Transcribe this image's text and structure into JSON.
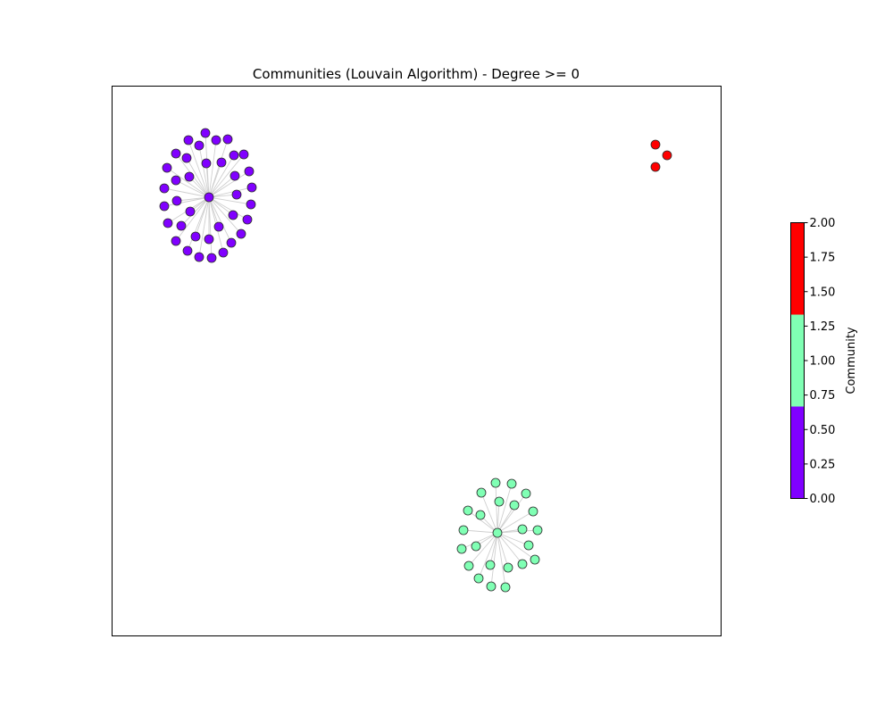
{
  "title": "Communities (Louvain Algorithm) - Degree >= 0",
  "colorbar": {
    "label": "Community",
    "min": 0,
    "max": 2,
    "ticks": [
      "0.00",
      "0.25",
      "0.50",
      "0.75",
      "1.00",
      "1.25",
      "1.50",
      "1.75",
      "2.00"
    ],
    "bands": [
      {
        "from": 0,
        "to": 0.6667,
        "color": "#8000ff"
      },
      {
        "from": 0.6667,
        "to": 1.3333,
        "color": "#80ffb4"
      },
      {
        "from": 1.3333,
        "to": 2,
        "color": "#ff0000"
      }
    ]
  },
  "communities": [
    {
      "id": 0,
      "color": "#8000ff",
      "layout": "star",
      "nodes": 40
    },
    {
      "id": 1,
      "color": "#80ffb4",
      "layout": "star",
      "nodes": 24
    },
    {
      "id": 2,
      "color": "#ff0000",
      "layout": "cluster",
      "nodes": 3
    }
  ]
}
